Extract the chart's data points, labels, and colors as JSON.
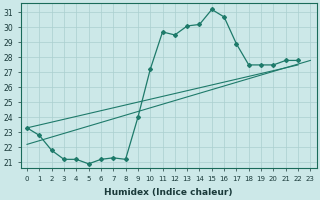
{
  "xlabel": "Humidex (Indice chaleur)",
  "bg_color": "#cce8e8",
  "grid_color": "#aacfcf",
  "line_color": "#1e7a6a",
  "xlim": [
    -0.5,
    23.5
  ],
  "ylim": [
    20.6,
    31.6
  ],
  "main_x": [
    0,
    1,
    2,
    3,
    4,
    5,
    6,
    7,
    8,
    9,
    10,
    11,
    12,
    13,
    14,
    15,
    16,
    17,
    18,
    19,
    20,
    21,
    22
  ],
  "main_y": [
    23.3,
    22.8,
    21.8,
    21.2,
    21.2,
    20.9,
    21.2,
    21.3,
    21.2,
    24.0,
    27.2,
    29.7,
    29.5,
    30.1,
    30.2,
    31.2,
    30.7,
    28.9,
    27.5,
    27.5,
    27.5,
    27.8,
    27.8
  ],
  "line2_x": [
    0,
    23
  ],
  "line2_y": [
    22.2,
    27.8
  ],
  "line3_x": [
    0,
    22
  ],
  "line3_y": [
    23.3,
    27.5
  ],
  "yticks": [
    21,
    22,
    23,
    24,
    25,
    26,
    27,
    28,
    29,
    30,
    31
  ],
  "xticks": [
    0,
    1,
    2,
    3,
    4,
    5,
    6,
    7,
    8,
    9,
    10,
    11,
    12,
    13,
    14,
    15,
    16,
    17,
    18,
    19,
    20,
    21,
    22,
    23
  ]
}
